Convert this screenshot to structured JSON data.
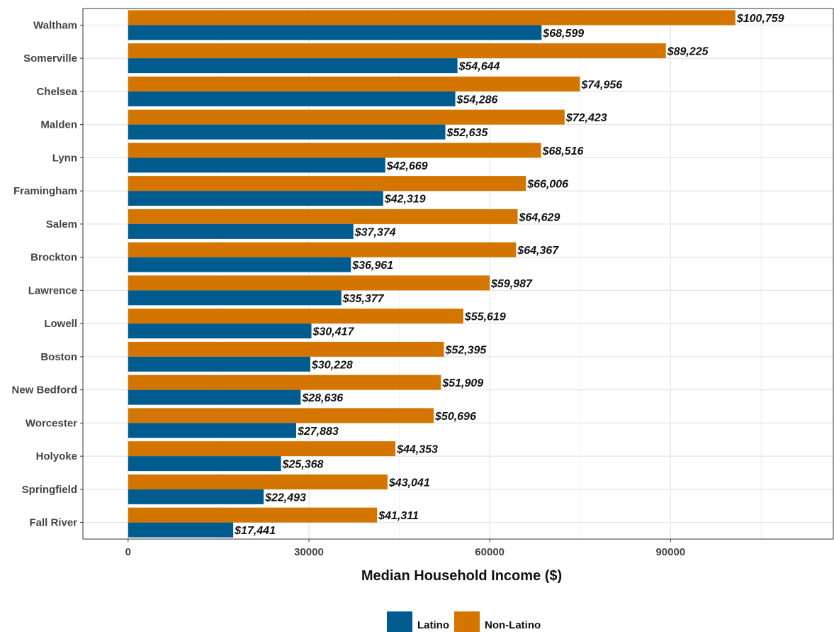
{
  "chart_data": {
    "type": "bar",
    "orientation": "horizontal",
    "title": "",
    "xlabel": "Median Household Income ($)",
    "ylabel": "",
    "xlim": [
      -7500,
      117000
    ],
    "xticks": [
      "0",
      "30000",
      "60000",
      "90000"
    ],
    "xtick_values": [
      0,
      30000,
      60000,
      90000
    ],
    "grid": true,
    "legend_position": "bottom",
    "categories": [
      "Waltham",
      "Somerville",
      "Chelsea",
      "Malden",
      "Lynn",
      "Framingham",
      "Salem",
      "Brockton",
      "Lawrence",
      "Lowell",
      "Boston",
      "New Bedford",
      "Worcester",
      "Holyoke",
      "Springfield",
      "Fall River"
    ],
    "series": [
      {
        "name": "Latino",
        "color": "#005b8f",
        "values": [
          68599,
          54644,
          54286,
          52635,
          42669,
          42319,
          37374,
          36961,
          35377,
          30417,
          30228,
          28636,
          27883,
          25368,
          22493,
          17441
        ],
        "labels": [
          "$68,599",
          "$54,644",
          "$54,286",
          "$52,635",
          "$42,669",
          "$42,319",
          "$37,374",
          "$36,961",
          "$35,377",
          "$30,417",
          "$30,228",
          "$28,636",
          "$27,883",
          "$25,368",
          "$22,493",
          "$17,441"
        ]
      },
      {
        "name": "Non-Latino",
        "color": "#d47500",
        "values": [
          100759,
          89225,
          74956,
          72423,
          68516,
          66006,
          64629,
          64367,
          59987,
          55619,
          52395,
          51909,
          50696,
          44353,
          43041,
          41311
        ],
        "labels": [
          "$100,759",
          "$89,225",
          "$74,956",
          "$72,423",
          "$68,516",
          "$66,006",
          "$64,629",
          "$64,367",
          "$59,987",
          "$55,619",
          "$52,395",
          "$51,909",
          "$50,696",
          "$44,353",
          "$43,041",
          "$41,311"
        ]
      }
    ]
  }
}
